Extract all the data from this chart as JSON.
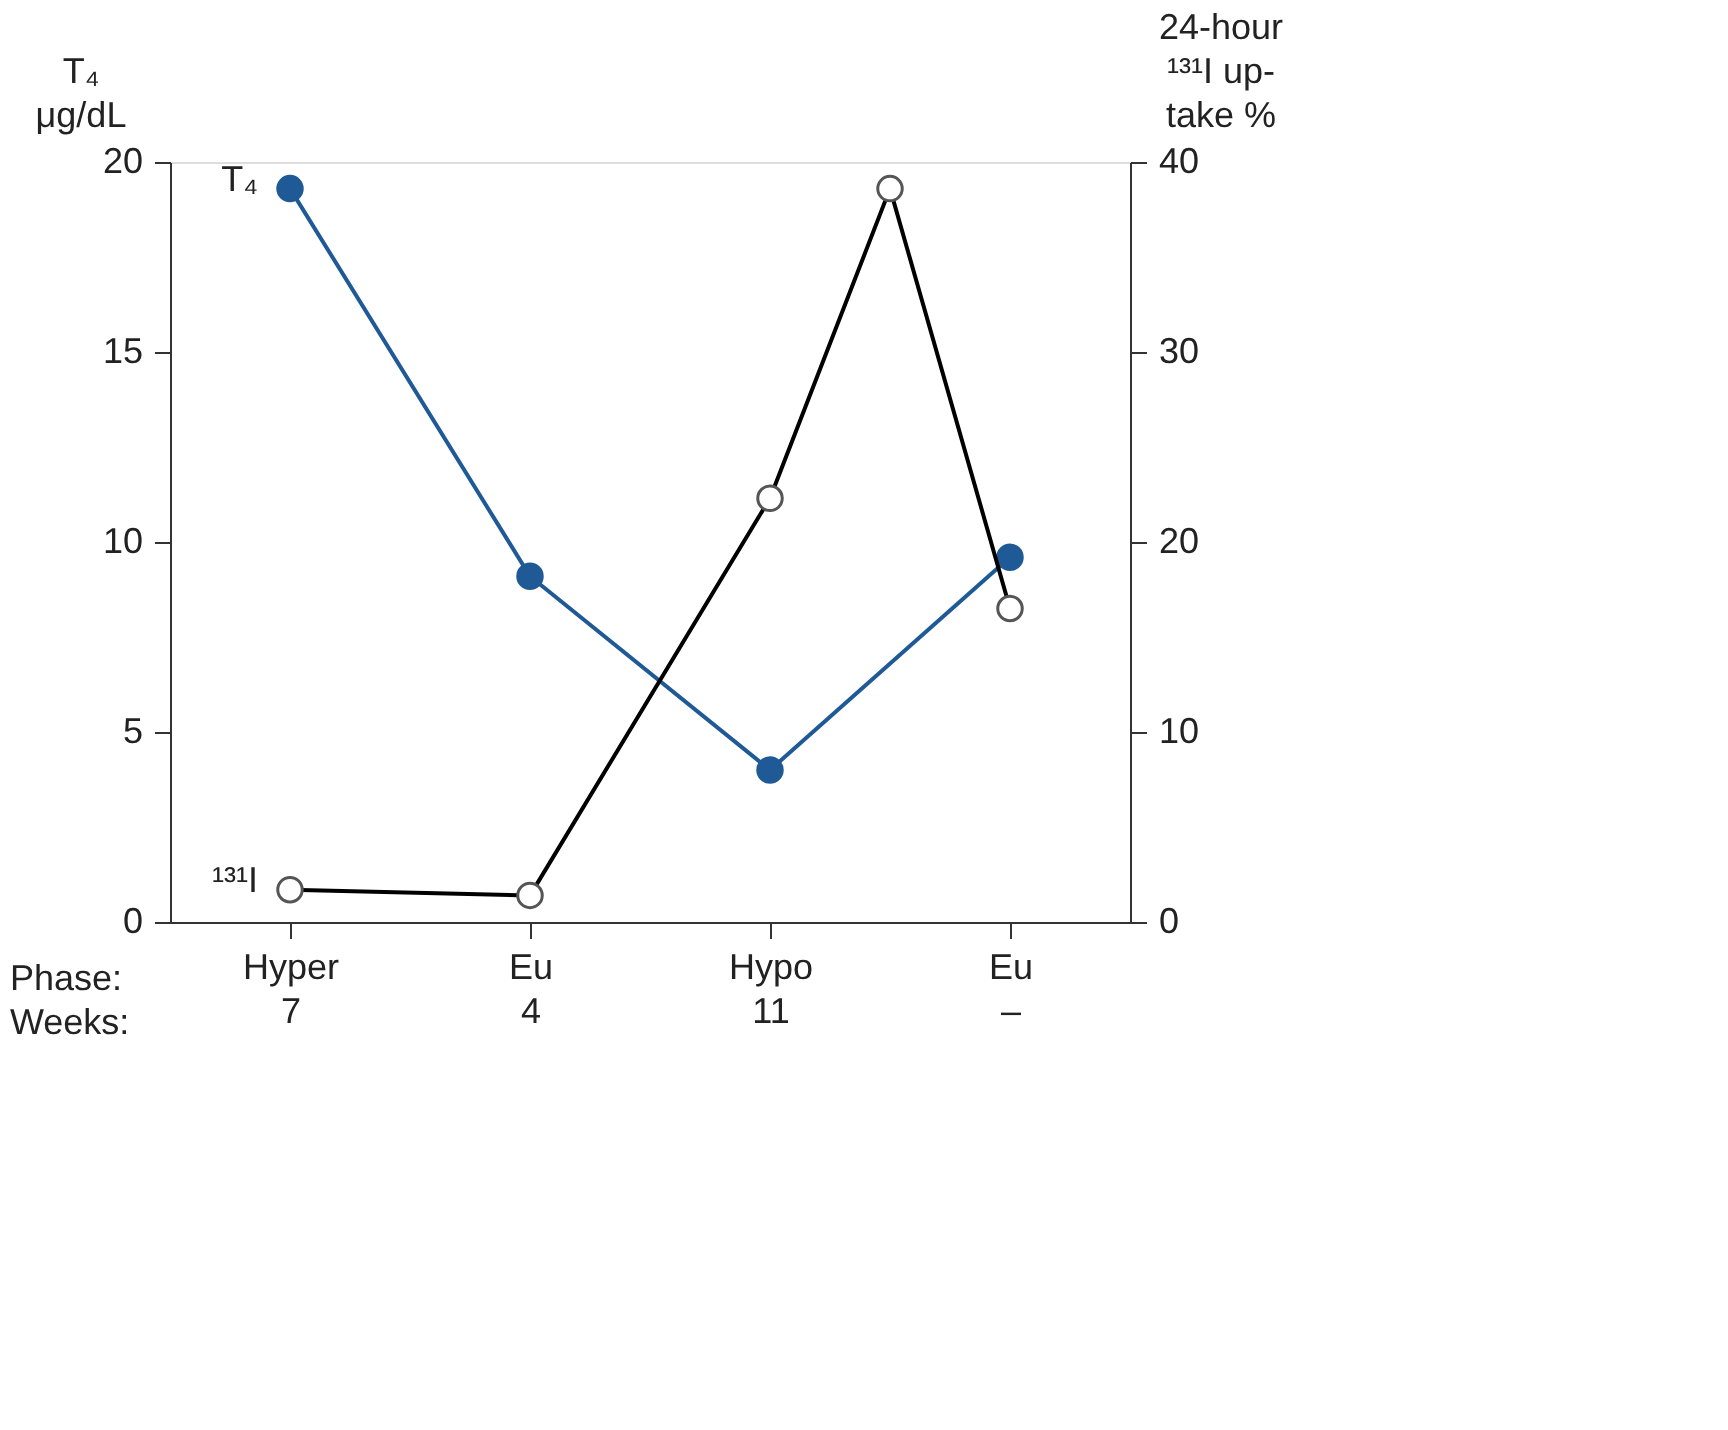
{
  "chart_data": {
    "type": "line",
    "ylabel": "T₄\nμg/dL",
    "y2label": "24-hour\n¹³¹I up-\ntake %",
    "categories": [
      "Hyper\n7",
      null,
      "Eu\n4",
      null,
      "Hypo\n11",
      null,
      "Eu\n–"
    ],
    "ylim": [
      0,
      20
    ],
    "yticks": [
      0,
      5,
      10,
      15,
      20
    ],
    "y2lim": [
      0,
      40
    ],
    "y2ticks": [
      0,
      10,
      20,
      30,
      40
    ],
    "annotations": [
      "Phase:\nWeeks:"
    ],
    "series": [
      {
        "name": "T₄",
        "color": "#1f5a96",
        "values": [
          19.3,
          null,
          9.1,
          null,
          4.0,
          null,
          9.6
        ]
      },
      {
        "name": "¹³¹I",
        "color": "#000000",
        "axis": "y2",
        "values": [
          1.7,
          null,
          1.4,
          null,
          22.3,
          38.6,
          16.5
        ]
      }
    ],
    "marker": "circle",
    "line_style": "solid",
    "grid": false
  }
}
